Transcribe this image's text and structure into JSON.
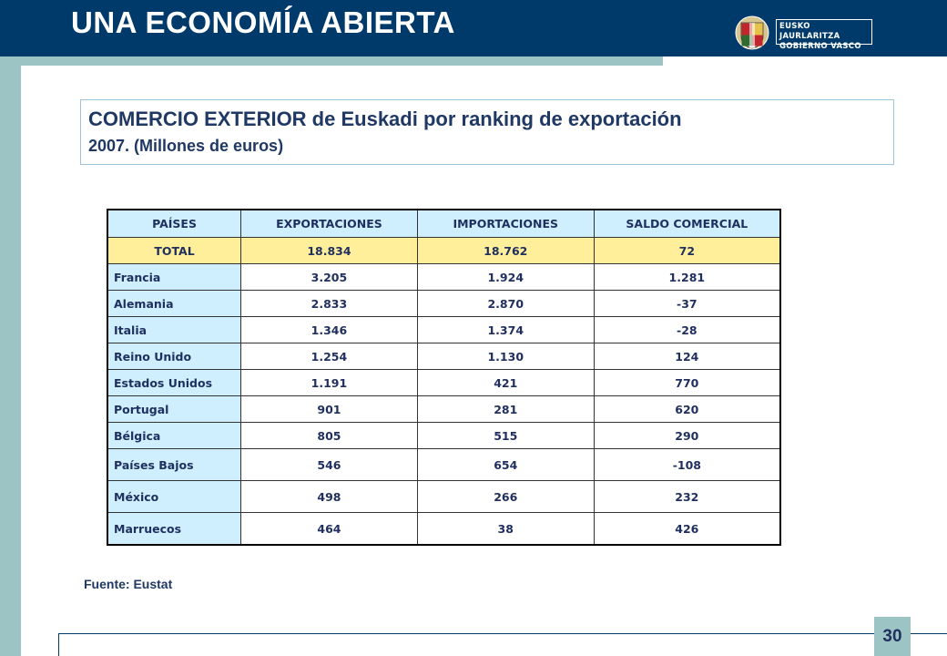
{
  "header": {
    "title": "UNA ECONOMÍA ABIERTA",
    "logo_line1": "EUSKO JAURLARITZA",
    "logo_line2": "GOBIERNO VASCO"
  },
  "subtitle": {
    "line1": "COMERCIO EXTERIOR de Euskadi por ranking de exportación",
    "line2": "2007. (Millones de euros)"
  },
  "table": {
    "headers": [
      "PAÍSES",
      "EXPORTACIONES",
      "IMPORTACIONES",
      "SALDO COMERCIAL"
    ],
    "total": [
      "TOTAL",
      "18.834",
      "18.762",
      "72"
    ],
    "rows": [
      [
        "Francia",
        "3.205",
        "1.924",
        "1.281"
      ],
      [
        "Alemania",
        "2.833",
        "2.870",
        "-37"
      ],
      [
        "Italia",
        "1.346",
        "1.374",
        "-28"
      ],
      [
        "Reino Unido",
        "1.254",
        "1.130",
        "124"
      ],
      [
        "Estados Unidos",
        "1.191",
        "421",
        "770"
      ],
      [
        "Portugal",
        "901",
        "281",
        "620"
      ],
      [
        "Bélgica",
        "805",
        "515",
        "290"
      ],
      [
        "Países Bajos",
        "546",
        "654",
        "-108"
      ],
      [
        "México",
        "498",
        "266",
        "232"
      ],
      [
        "Marruecos",
        "464",
        "38",
        "426"
      ]
    ]
  },
  "source": "Fuente: Eustat",
  "page_number": "30",
  "colors": {
    "header_bg": "#003a6a",
    "accent": "#9dc4c4",
    "total_row": "#ffef9a",
    "country_cell": "#cfefff"
  }
}
